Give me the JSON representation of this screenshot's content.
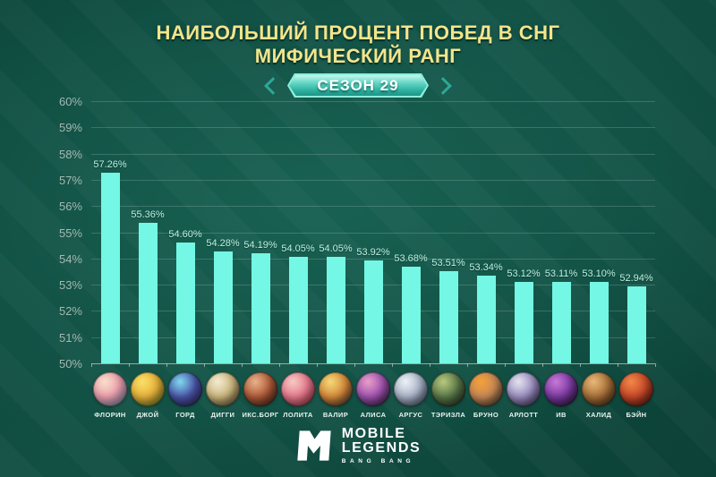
{
  "header": {
    "line1": "НАИБОЛЬШИЙ ПРОЦЕНТ ПОБЕД В СНГ",
    "line2": "МИФИЧЕСКИЙ РАНГ",
    "season": "СЕЗОН 29"
  },
  "chart_data": {
    "type": "bar",
    "title": "Наибольший процент побед в СНГ — Мифический ранг, Сезон 29",
    "categories": [
      "ФЛОРИН",
      "ДЖОЙ",
      "ГОРД",
      "ДИГГИ",
      "ИКС.БОРГ",
      "ЛОЛИТА",
      "ВАЛИР",
      "АЛИСА",
      "АРГУС",
      "ТЭРИЗЛА",
      "БРУНО",
      "АРЛОТТ",
      "ИВ",
      "ХАЛИД",
      "БЭЙН"
    ],
    "values": [
      57.26,
      55.36,
      54.6,
      54.28,
      54.19,
      54.05,
      54.05,
      53.92,
      53.68,
      53.51,
      53.34,
      53.12,
      53.11,
      53.1,
      52.94
    ],
    "value_labels": [
      "57.26%",
      "55.36%",
      "54.60%",
      "54.28%",
      "54.19%",
      "54.05%",
      "54.05%",
      "53.92%",
      "53.68%",
      "53.51%",
      "53.34%",
      "53.12%",
      "53.11%",
      "53.10%",
      "52.94%"
    ],
    "xlabel": "",
    "ylabel": "",
    "ylim": [
      50,
      60
    ],
    "yticks": [
      "60%",
      "59%",
      "58%",
      "57%",
      "56%",
      "55%",
      "54%",
      "53%",
      "52%",
      "51%",
      "50%"
    ],
    "grid": true,
    "legend": false,
    "bar_color": "#74f7e4",
    "value_label_color": "#bdf0e4",
    "ytick_color": "#a5b8b2"
  },
  "avatars": [
    {
      "hero": "ФЛОРИН",
      "colors": [
        "#f7dfc9",
        "#ee9fae",
        "#7fa8cf"
      ]
    },
    {
      "hero": "ДЖОЙ",
      "colors": [
        "#f9e067",
        "#e9b23a",
        "#6f8f2e"
      ]
    },
    {
      "hero": "ГОРД",
      "colors": [
        "#7fd8ee",
        "#4a55a8",
        "#3a2a6e"
      ]
    },
    {
      "hero": "ДИГГИ",
      "colors": [
        "#f2ead2",
        "#cdb87e",
        "#6e5a3a"
      ]
    },
    {
      "hero": "ИКС.БОРГ",
      "colors": [
        "#e8b289",
        "#b05a38",
        "#4a2a20"
      ]
    },
    {
      "hero": "ЛОЛИТА",
      "colors": [
        "#f6c9c2",
        "#e8798f",
        "#b03a4a"
      ]
    },
    {
      "hero": "ВАЛИР",
      "colors": [
        "#f2d878",
        "#d88a3a",
        "#4a3a38"
      ]
    },
    {
      "hero": "АЛИСА",
      "colors": [
        "#e89ec8",
        "#a052b0",
        "#3a2448"
      ]
    },
    {
      "hero": "АРГУС",
      "colors": [
        "#eef1f6",
        "#a8b4c8",
        "#4a5570"
      ]
    },
    {
      "hero": "ТЭРИЗЛА",
      "colors": [
        "#b8c87e",
        "#5a7848",
        "#2e3a28"
      ]
    },
    {
      "hero": "БРУНО",
      "colors": [
        "#f4a03a",
        "#c88a58",
        "#58442e"
      ]
    },
    {
      "hero": "АРЛОТТ",
      "colors": [
        "#e4e2ee",
        "#9a8ec0",
        "#4a3a6a"
      ]
    },
    {
      "hero": "ИВ",
      "colors": [
        "#c878d8",
        "#7a3aa0",
        "#2a1838"
      ]
    },
    {
      "hero": "ХАЛИД",
      "colors": [
        "#e8b878",
        "#a87038",
        "#4a3020"
      ]
    },
    {
      "hero": "БЭЙН",
      "colors": [
        "#f08848",
        "#c84828",
        "#5a1e14"
      ]
    }
  ],
  "logo": {
    "line1": "MOBILE",
    "line2": "LEGENDS",
    "line3": "BANG BANG"
  },
  "theme": {
    "background": "#0e4a3e",
    "title_color": "#f2e58d",
    "badge_fill_top": "#c6f6ed",
    "badge_fill_bottom": "#1d9486",
    "badge_text": "#ffffff",
    "chevron_color": "#2fa796"
  }
}
